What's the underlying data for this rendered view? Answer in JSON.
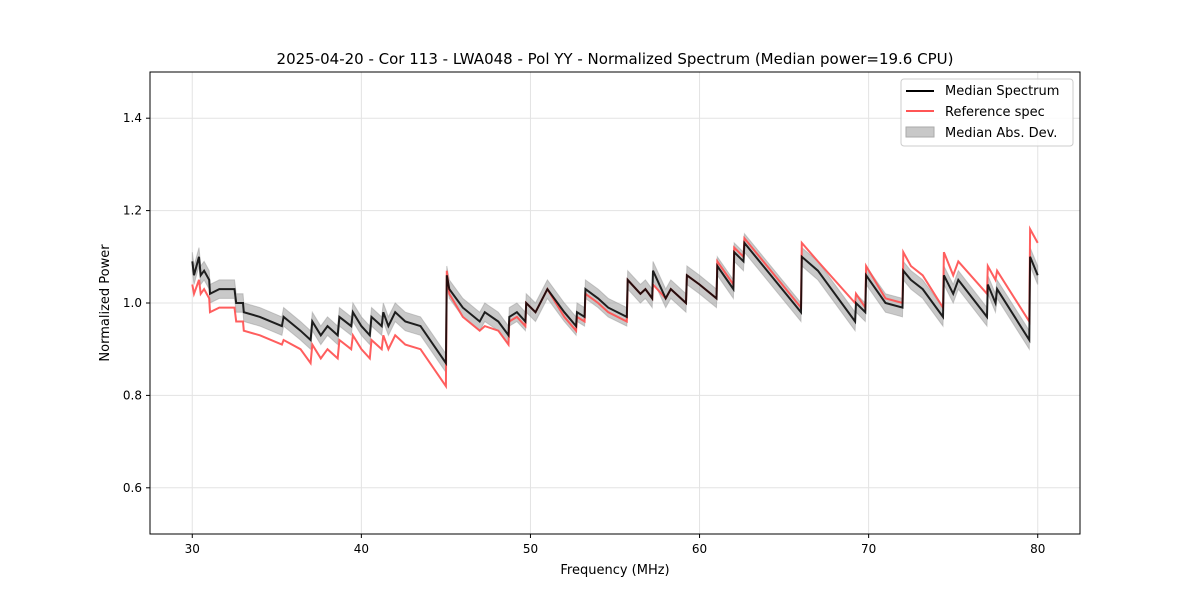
{
  "chart_data": {
    "type": "line",
    "title": "2025-04-20 - Cor 113 - LWA048 - Pol YY - Normalized Spectrum (Median power=19.6 CPU)",
    "xlabel": "Frequency (MHz)",
    "ylabel": "Normalized Power",
    "xlim": [
      27.5,
      82.5
    ],
    "ylim": [
      0.5,
      1.5
    ],
    "xticks": [
      30,
      40,
      50,
      60,
      70,
      80
    ],
    "xtick_labels": [
      "30",
      "40",
      "50",
      "60",
      "70",
      "80"
    ],
    "yticks": [
      0.6,
      0.8,
      1.0,
      1.2,
      1.4
    ],
    "ytick_labels": [
      "0.6",
      "0.8",
      "1.0",
      "1.2",
      "1.4"
    ],
    "grid": true,
    "legend_position": "top-right",
    "legend": [
      "Median Spectrum",
      "Reference spec",
      "Median Abs. Dev."
    ],
    "colors": {
      "median": "#000000",
      "reference": "#ff5555",
      "mad": "#c8c8c8"
    },
    "mad_halfwidth": 0.02,
    "x": [
      30.0,
      30.1,
      30.4,
      30.5,
      30.7,
      31.0,
      31.05,
      31.6,
      32.5,
      32.6,
      33.0,
      33.05,
      34.0,
      35.3,
      35.4,
      36.4,
      37.0,
      37.1,
      37.6,
      38.0,
      38.6,
      38.7,
      39.4,
      39.5,
      40.0,
      40.5,
      40.6,
      41.2,
      41.3,
      41.6,
      42.0,
      42.6,
      43.5,
      45.0,
      45.05,
      45.2,
      46.0,
      47.0,
      47.3,
      48.1,
      48.7,
      48.75,
      49.2,
      49.7,
      49.75,
      50.3,
      51.0,
      52.0,
      52.7,
      52.75,
      53.2,
      53.25,
      54.0,
      54.6,
      55.7,
      55.75,
      56.5,
      56.8,
      57.2,
      57.25,
      58.0,
      58.3,
      59.2,
      59.25,
      60.0,
      61.0,
      61.05,
      62.0,
      62.05,
      62.6,
      62.65,
      66.0,
      66.05,
      67.0,
      69.2,
      69.25,
      69.8,
      69.85,
      71.0,
      72.0,
      72.05,
      72.5,
      73.2,
      74.4,
      74.45,
      75.0,
      75.3,
      77.0,
      77.05,
      77.5,
      77.6,
      79.5,
      79.55,
      80.0
    ],
    "series": [
      {
        "name": "Median Spectrum",
        "values": [
          1.09,
          1.06,
          1.1,
          1.06,
          1.07,
          1.05,
          1.02,
          1.03,
          1.03,
          1.0,
          1.0,
          0.98,
          0.97,
          0.95,
          0.97,
          0.94,
          0.92,
          0.96,
          0.93,
          0.95,
          0.93,
          0.97,
          0.95,
          0.98,
          0.95,
          0.93,
          0.97,
          0.95,
          0.98,
          0.95,
          0.98,
          0.96,
          0.95,
          0.87,
          1.06,
          1.03,
          0.99,
          0.96,
          0.98,
          0.96,
          0.93,
          0.97,
          0.98,
          0.96,
          1.0,
          0.98,
          1.03,
          0.98,
          0.95,
          0.98,
          0.97,
          1.03,
          1.01,
          0.99,
          0.97,
          1.05,
          1.02,
          1.03,
          1.01,
          1.07,
          1.01,
          1.03,
          1.0,
          1.06,
          1.04,
          1.01,
          1.08,
          1.03,
          1.11,
          1.09,
          1.13,
          0.98,
          1.1,
          1.07,
          0.96,
          1.0,
          0.98,
          1.06,
          1.0,
          0.99,
          1.07,
          1.05,
          1.03,
          0.97,
          1.06,
          1.02,
          1.05,
          0.97,
          1.04,
          1.0,
          1.03,
          0.92,
          1.1,
          1.06
        ]
      },
      {
        "name": "Reference spec",
        "values": [
          1.04,
          1.02,
          1.05,
          1.02,
          1.03,
          1.01,
          0.98,
          0.99,
          0.99,
          0.96,
          0.96,
          0.94,
          0.93,
          0.91,
          0.92,
          0.9,
          0.87,
          0.91,
          0.88,
          0.9,
          0.88,
          0.92,
          0.9,
          0.93,
          0.9,
          0.88,
          0.92,
          0.9,
          0.93,
          0.9,
          0.93,
          0.91,
          0.9,
          0.82,
          1.07,
          1.02,
          0.97,
          0.94,
          0.95,
          0.94,
          0.91,
          0.96,
          0.97,
          0.95,
          1.0,
          0.98,
          1.03,
          0.97,
          0.94,
          0.97,
          0.96,
          1.02,
          1.0,
          0.98,
          0.96,
          1.05,
          1.02,
          1.03,
          1.01,
          1.04,
          1.01,
          1.03,
          1.0,
          1.06,
          1.04,
          1.01,
          1.09,
          1.04,
          1.12,
          1.1,
          1.14,
          0.99,
          1.13,
          1.09,
          1.0,
          1.02,
          0.99,
          1.08,
          1.01,
          1.0,
          1.11,
          1.08,
          1.06,
          0.99,
          1.11,
          1.06,
          1.09,
          1.02,
          1.08,
          1.05,
          1.07,
          0.96,
          1.16,
          1.13
        ]
      }
    ]
  }
}
